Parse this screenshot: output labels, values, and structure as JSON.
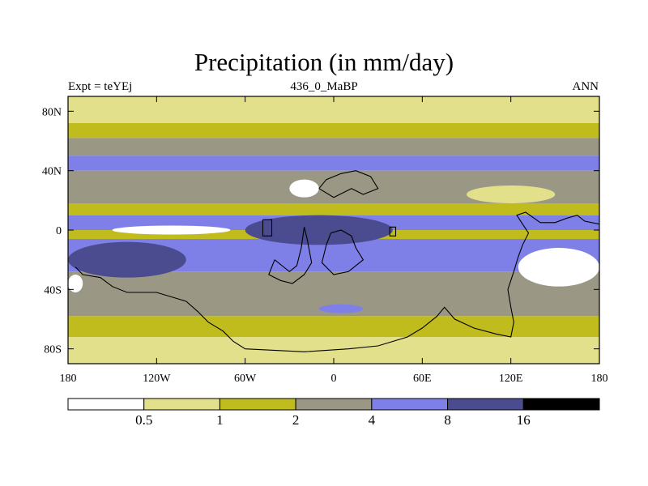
{
  "chart_data": {
    "type": "contour-map",
    "title": "Precipitation (in mm/day)",
    "left_label": "Expt = teYEj",
    "center_label": "436_0_MaBP",
    "right_label": "ANN",
    "x_ticks": [
      {
        "value": -180,
        "label": "180"
      },
      {
        "value": -120,
        "label": "120W"
      },
      {
        "value": -60,
        "label": "60W"
      },
      {
        "value": 0,
        "label": "0"
      },
      {
        "value": 60,
        "label": "60E"
      },
      {
        "value": 120,
        "label": "120E"
      },
      {
        "value": 180,
        "label": "180"
      }
    ],
    "y_ticks": [
      {
        "value": 80,
        "label": "80N"
      },
      {
        "value": 40,
        "label": "40N"
      },
      {
        "value": 0,
        "label": "0"
      },
      {
        "value": -40,
        "label": "40S"
      },
      {
        "value": -80,
        "label": "80S"
      }
    ],
    "xlim": [
      -180,
      180
    ],
    "ylim": [
      -90,
      90
    ],
    "levels": [
      0.5,
      1,
      2,
      4,
      8,
      16
    ],
    "level_labels": [
      "0.5",
      "1",
      "2",
      "4",
      "8",
      "16"
    ],
    "colors": [
      "#ffffff",
      "#e3e08c",
      "#c1bc1d",
      "#9a9885",
      "#7f7fe8",
      "#4b4b8f",
      "#000000"
    ],
    "zonal_bands": [
      {
        "lat": [
          90,
          72
        ],
        "bin": 1
      },
      {
        "lat": [
          72,
          62
        ],
        "bin": 2
      },
      {
        "lat": [
          62,
          50
        ],
        "bin": 3
      },
      {
        "lat": [
          50,
          40
        ],
        "bin": 4
      },
      {
        "lat": [
          40,
          18
        ],
        "bin": 3
      },
      {
        "lat": [
          18,
          10
        ],
        "bin": 2
      },
      {
        "lat": [
          10,
          0
        ],
        "bin": 4
      },
      {
        "lat": [
          0,
          -6
        ],
        "bin": 2
      },
      {
        "lat": [
          -6,
          -28
        ],
        "bin": 4
      },
      {
        "lat": [
          -28,
          -58
        ],
        "bin": 3
      },
      {
        "lat": [
          -58,
          -72
        ],
        "bin": 2
      },
      {
        "lat": [
          -72,
          -90
        ],
        "bin": 1
      }
    ],
    "patches": [
      {
        "lon": [
          -180,
          -100
        ],
        "lat": [
          -8,
          -32
        ],
        "bin": 5
      },
      {
        "lon": [
          -60,
          40
        ],
        "lat": [
          10,
          -10
        ],
        "bin": 5
      },
      {
        "lon": [
          -150,
          -70
        ],
        "lat": [
          3,
          -3
        ],
        "bin": 0
      },
      {
        "lon": [
          -30,
          -10
        ],
        "lat": [
          34,
          22
        ],
        "bin": 0
      },
      {
        "lon": [
          125,
          180
        ],
        "lat": [
          -12,
          -38
        ],
        "bin": 0
      },
      {
        "lon": [
          -180,
          -170
        ],
        "lat": [
          -30,
          -42
        ],
        "bin": 0
      },
      {
        "lon": [
          90,
          150
        ],
        "lat": [
          30,
          18
        ],
        "bin": 1
      },
      {
        "lon": [
          -10,
          20
        ],
        "lat": [
          -50,
          -56
        ],
        "bin": 4
      }
    ],
    "coastlines": [
      {
        "name": "pangea-main",
        "points": [
          [
            -175,
            -25
          ],
          [
            -170,
            -30
          ],
          [
            -158,
            -32
          ],
          [
            -150,
            -38
          ],
          [
            -140,
            -42
          ],
          [
            -120,
            -42
          ],
          [
            -110,
            -45
          ],
          [
            -100,
            -48
          ],
          [
            -92,
            -55
          ],
          [
            -85,
            -62
          ],
          [
            -75,
            -68
          ],
          [
            -68,
            -75
          ],
          [
            -60,
            -80
          ],
          [
            -20,
            -82
          ],
          [
            10,
            -80
          ],
          [
            30,
            -78
          ],
          [
            50,
            -72
          ],
          [
            60,
            -66
          ],
          [
            70,
            -58
          ],
          [
            75,
            -52
          ],
          [
            82,
            -60
          ],
          [
            95,
            -66
          ],
          [
            110,
            -70
          ],
          [
            120,
            -72
          ],
          [
            122,
            -62
          ],
          [
            120,
            -52
          ],
          [
            118,
            -40
          ],
          [
            122,
            -28
          ],
          [
            125,
            -18
          ],
          [
            128,
            -10
          ],
          [
            132,
            -2
          ],
          [
            128,
            4
          ],
          [
            124,
            10
          ],
          [
            130,
            12
          ],
          [
            140,
            5
          ],
          [
            150,
            5
          ],
          [
            158,
            8
          ],
          [
            165,
            10
          ],
          [
            170,
            6
          ],
          [
            180,
            4
          ]
        ]
      },
      {
        "name": "island-west",
        "points": [
          [
            -48,
            7
          ],
          [
            -48,
            -4
          ],
          [
            -42,
            -4
          ],
          [
            -42,
            7
          ],
          [
            -48,
            7
          ]
        ]
      },
      {
        "name": "arc-microcontinent",
        "points": [
          [
            -40,
            -20
          ],
          [
            -35,
            -24
          ],
          [
            -30,
            -28
          ],
          [
            -25,
            -24
          ],
          [
            -22,
            -12
          ],
          [
            -20,
            2
          ],
          [
            -18,
            -6
          ],
          [
            -15,
            -22
          ],
          [
            -20,
            -30
          ],
          [
            -28,
            -36
          ],
          [
            -36,
            -34
          ],
          [
            -44,
            -30
          ],
          [
            -40,
            -20
          ]
        ]
      },
      {
        "name": "north-block",
        "points": [
          [
            -10,
            28
          ],
          [
            -5,
            34
          ],
          [
            5,
            38
          ],
          [
            15,
            40
          ],
          [
            25,
            36
          ],
          [
            30,
            28
          ],
          [
            20,
            24
          ],
          [
            12,
            28
          ],
          [
            0,
            22
          ],
          [
            -10,
            28
          ]
        ]
      },
      {
        "name": "central-block",
        "points": [
          [
            -2,
            -2
          ],
          [
            5,
            0
          ],
          [
            12,
            -4
          ],
          [
            15,
            -12
          ],
          [
            20,
            -20
          ],
          [
            10,
            -28
          ],
          [
            0,
            -30
          ],
          [
            -8,
            -22
          ],
          [
            -5,
            -10
          ],
          [
            -2,
            -2
          ]
        ]
      },
      {
        "name": "small-isle",
        "points": [
          [
            38,
            2
          ],
          [
            42,
            2
          ],
          [
            42,
            -4
          ],
          [
            38,
            -4
          ],
          [
            38,
            2
          ]
        ]
      }
    ]
  }
}
